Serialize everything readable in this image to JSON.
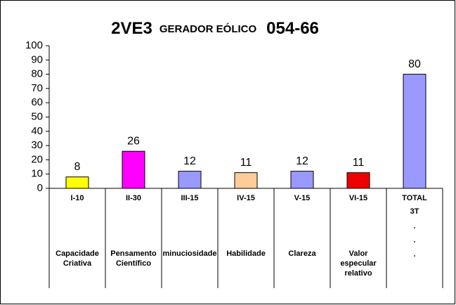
{
  "chart_data": {
    "type": "bar",
    "title_parts": [
      "2VE3",
      "GERADOR EÓLICO",
      "054-66"
    ],
    "categories": [
      "I-10",
      "II-30",
      "III-15",
      "IV-15",
      "V-15",
      "VI-15",
      "TOTAL"
    ],
    "sublabels": [
      null,
      null,
      null,
      null,
      null,
      null,
      "3T"
    ],
    "descriptions": [
      [
        "Capacidade",
        "Criativa"
      ],
      [
        "Pensamento",
        "Científico"
      ],
      [
        "minuciosidade"
      ],
      [
        "Habilidade"
      ],
      [
        "Clareza"
      ],
      [
        "Valor",
        "especular",
        "relativo"
      ],
      [
        ".",
        ".",
        "."
      ]
    ],
    "values": [
      8,
      26,
      12,
      11,
      12,
      11,
      80
    ],
    "colors": [
      "#ffff00",
      "#ff00ff",
      "#9999ff",
      "#ffcc99",
      "#9999ff",
      "#ee0000",
      "#9999ff"
    ],
    "ylim": [
      0,
      100
    ],
    "yticks": [
      0,
      10,
      20,
      30,
      40,
      50,
      60,
      70,
      80,
      90,
      100
    ],
    "grid": false
  }
}
